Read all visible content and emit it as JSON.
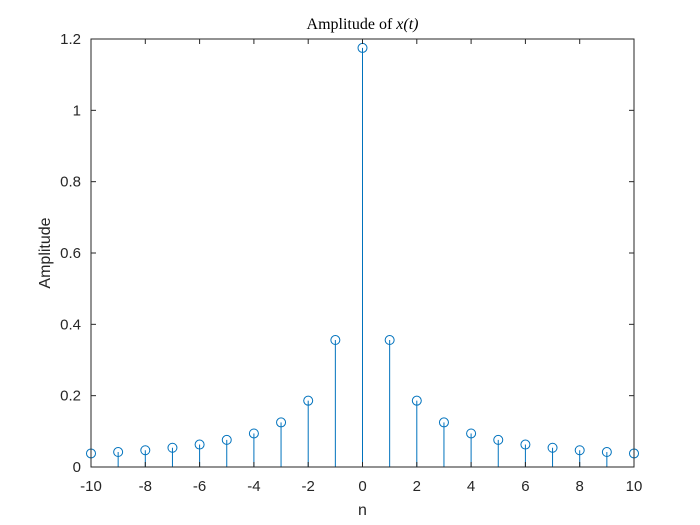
{
  "chart_data": {
    "type": "stem",
    "title_prefix": "Amplitude of ",
    "title_math": "x(t)",
    "xlabel": "n",
    "ylabel": "Amplitude",
    "xlim": [
      -10,
      10
    ],
    "ylim": [
      0,
      1.2
    ],
    "xticks": [
      -10,
      -8,
      -6,
      -4,
      -2,
      0,
      2,
      4,
      6,
      8,
      10
    ],
    "xtick_labels": [
      "-10",
      "-8",
      "-6",
      "-4",
      "-2",
      "0",
      "2",
      "4",
      "6",
      "8",
      "10"
    ],
    "yticks": [
      0,
      0.2,
      0.4,
      0.6,
      0.8,
      1,
      1.2
    ],
    "ytick_labels": [
      "0",
      "0.2",
      "0.4",
      "0.6",
      "0.8",
      "1",
      "1.2"
    ],
    "grid": false,
    "color": "#0072BD",
    "x": [
      -10,
      -9,
      -8,
      -7,
      -6,
      -5,
      -4,
      -3,
      -2,
      -1,
      0,
      1,
      2,
      3,
      4,
      5,
      6,
      7,
      8,
      9,
      10
    ],
    "values": [
      0.038,
      0.042,
      0.047,
      0.054,
      0.063,
      0.076,
      0.094,
      0.125,
      0.186,
      0.356,
      1.175,
      0.356,
      0.186,
      0.125,
      0.094,
      0.076,
      0.063,
      0.054,
      0.047,
      0.042,
      0.038
    ]
  }
}
